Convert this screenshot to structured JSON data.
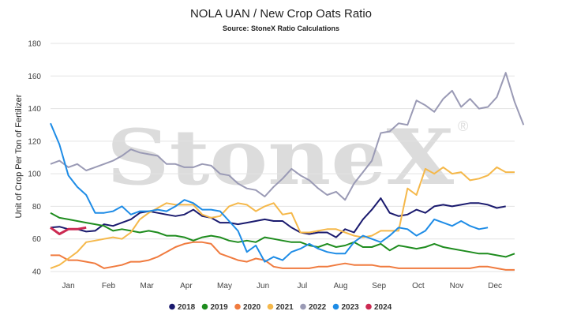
{
  "chart_data": {
    "type": "line",
    "title": "NOLA UAN / New Crop Oats Ratio",
    "subtitle": "Source: StoneX Ratio Calculations",
    "ylabel": "Unit of Crop Per Ton of Fertilizer",
    "xlabel": "",
    "ylim": [
      40,
      180
    ],
    "yticks": [
      40,
      60,
      80,
      100,
      120,
      140,
      160,
      180
    ],
    "xlim": [
      0,
      52
    ],
    "month_labels": [
      "Jan",
      "Feb",
      "Mar",
      "Apr",
      "May",
      "Jun",
      "Jul",
      "Aug",
      "Sep",
      "Oct",
      "Nov",
      "Dec"
    ],
    "month_positions": [
      2,
      6.5,
      10.8,
      15.2,
      19.5,
      23.8,
      28.2,
      32.5,
      36.8,
      41.2,
      45.5,
      49.8
    ],
    "grid": "horizontal",
    "legend_position": "bottom",
    "watermark": "StoneX",
    "series": [
      {
        "name": "2018",
        "color": "#1a1a6e",
        "values": [
          67,
          67.5,
          66,
          66,
          64.5,
          65,
          69,
          68,
          70,
          72,
          76,
          77,
          76,
          75,
          74,
          75,
          78,
          74,
          73,
          70,
          70,
          69,
          70,
          71,
          72,
          71,
          71,
          67,
          64,
          63,
          64,
          64,
          61,
          66,
          64,
          72,
          78,
          85,
          76,
          74,
          75,
          78,
          76,
          80,
          81,
          80,
          81,
          82,
          82,
          81,
          79,
          80
        ]
      },
      {
        "name": "2019",
        "color": "#1e8c1e",
        "values": [
          76,
          73,
          72,
          71,
          70,
          69,
          68,
          65,
          66,
          65,
          64,
          65,
          64,
          62,
          62,
          61,
          59,
          61,
          62,
          61,
          59,
          58,
          59,
          58,
          61,
          60,
          59,
          58,
          58,
          56,
          55,
          57,
          55,
          56,
          58,
          55,
          55,
          57,
          53,
          56,
          55,
          54,
          55,
          57,
          55,
          54,
          53,
          52,
          51,
          51,
          50,
          49,
          51
        ]
      },
      {
        "name": "2020",
        "color": "#f07b3f",
        "values": [
          50,
          50,
          47,
          47,
          46,
          45,
          42,
          43,
          44,
          46,
          46,
          47,
          49,
          52,
          55,
          57,
          58,
          58,
          57,
          51,
          49,
          47,
          46,
          48,
          47,
          43,
          42,
          42,
          42,
          42,
          43,
          43,
          44,
          45,
          44,
          44,
          44,
          43,
          43,
          42,
          42,
          42,
          42,
          42,
          42,
          42,
          42,
          42,
          43,
          43,
          42,
          41,
          41
        ]
      },
      {
        "name": "2021",
        "color": "#f5b84a",
        "values": [
          42,
          44,
          48,
          52,
          58,
          59,
          60,
          61,
          60,
          64,
          72,
          76,
          79,
          82,
          81,
          81,
          81,
          75,
          73,
          74,
          80,
          82,
          81,
          77,
          80,
          82,
          75,
          76,
          64,
          64,
          65,
          66,
          66,
          64,
          62,
          61,
          62,
          65,
          65,
          65,
          91,
          87,
          103,
          100,
          104,
          100,
          101,
          96,
          97,
          99,
          104,
          101,
          101
        ]
      },
      {
        "name": "2022",
        "color": "#9a9ab5",
        "values": [
          106,
          108,
          104,
          106,
          102,
          104,
          106,
          108,
          111,
          115,
          113,
          112,
          111,
          106,
          106,
          104,
          104,
          106,
          105,
          100,
          99,
          94,
          91,
          90,
          86,
          92,
          97,
          103,
          99,
          96,
          91,
          87,
          89,
          84,
          94,
          101,
          108,
          125,
          126,
          131,
          130,
          145,
          142,
          138,
          146,
          151,
          141,
          146,
          140,
          141,
          147,
          162,
          144,
          130
        ]
      },
      {
        "name": "2023",
        "color": "#1e8ce6",
        "values": [
          131,
          118,
          99,
          92,
          87,
          76,
          76,
          77,
          80,
          75,
          77,
          77,
          78,
          77,
          80,
          84,
          82,
          78,
          78,
          77,
          71,
          65,
          52,
          56,
          46,
          49,
          47,
          52,
          54,
          57,
          54,
          52,
          51,
          51,
          58,
          62,
          60,
          58,
          62,
          67,
          66,
          62,
          65,
          72,
          70,
          68,
          71,
          68,
          66,
          67
        ]
      },
      {
        "name": "2024",
        "color": "#cc2a52",
        "values": [
          67,
          63,
          66,
          66,
          67
        ]
      }
    ]
  }
}
